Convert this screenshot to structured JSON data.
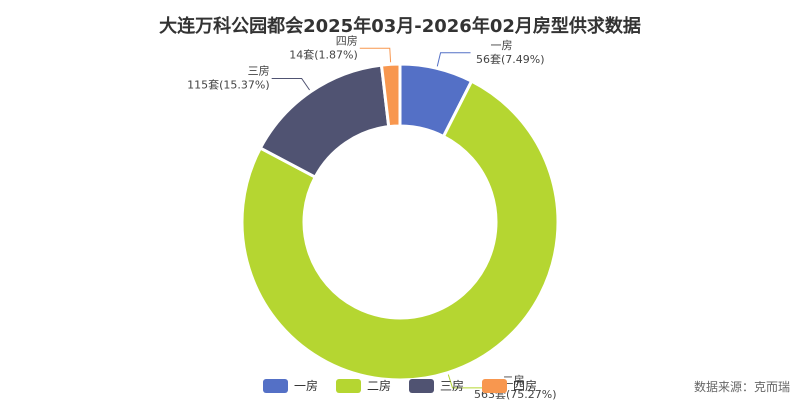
{
  "chart_data": {
    "type": "pie",
    "title": "大连万科公园都会2025年03月-2026年02月房型供求数据",
    "categories": [
      "一房",
      "二房",
      "三房",
      "四房"
    ],
    "series": [
      {
        "values": [
          56,
          563,
          115,
          14
        ],
        "value_labels": [
          "56套(7.49%)",
          "563套(75.27%)",
          "115套(15.37%)",
          "14套(1.87%)"
        ]
      }
    ],
    "colors": [
      "#5470c6",
      "#b5d631",
      "#505372",
      "#f8974f"
    ],
    "legend_position": "bottom-center"
  },
  "source_note": "数据来源：克而瑞"
}
